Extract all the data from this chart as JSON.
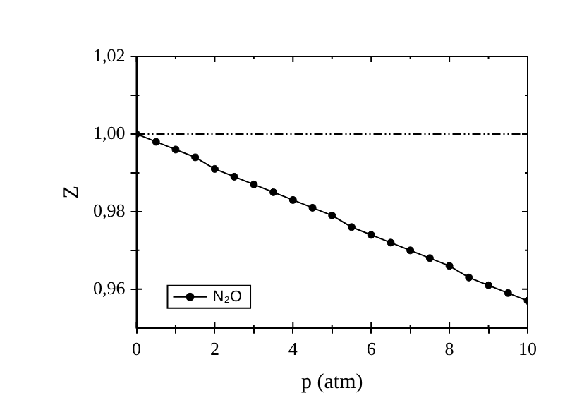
{
  "chart_data": {
    "type": "line",
    "xlabel": "p (atm)",
    "ylabel": "Z",
    "x": [
      0,
      0.5,
      1,
      1.5,
      2,
      2.5,
      3,
      3.5,
      4,
      4.5,
      5,
      5.5,
      6,
      6.5,
      7,
      7.5,
      8,
      8.5,
      9,
      9.5,
      10
    ],
    "series": [
      {
        "name": "N₂O",
        "color": "#000000",
        "values": [
          1.0,
          0.998,
          0.996,
          0.994,
          0.991,
          0.989,
          0.987,
          0.985,
          0.983,
          0.981,
          0.979,
          0.976,
          0.974,
          0.972,
          0.97,
          0.968,
          0.966,
          0.963,
          0.961,
          0.959,
          0.957
        ]
      }
    ],
    "xlim": [
      0,
      10
    ],
    "ylim": [
      0.95,
      1.02
    ],
    "xticks": [
      0,
      {
        "value": 1,
        "label": null
      },
      2,
      {
        "value": 3,
        "label": null
      },
      4,
      {
        "value": 5,
        "label": null
      },
      6,
      {
        "value": 7,
        "label": null
      },
      8,
      {
        "value": 9,
        "label": null
      },
      10
    ],
    "yticks": [
      {
        "value": 0.96,
        "label": "0,96"
      },
      {
        "value": 0.97,
        "label": null
      },
      {
        "value": 0.98,
        "label": "0,98"
      },
      {
        "value": 0.99,
        "label": null
      },
      {
        "value": 1.0,
        "label": "1,00"
      },
      {
        "value": 1.01,
        "label": null
      },
      {
        "value": 1.02,
        "label": "1,02"
      }
    ],
    "ref_lines": [
      {
        "axis": "y",
        "value": 1.0,
        "line_style": "dashed",
        "color": "#000000"
      }
    ],
    "grid": false,
    "legend": "bottom left",
    "marker": "circle",
    "line_style": "solid"
  }
}
